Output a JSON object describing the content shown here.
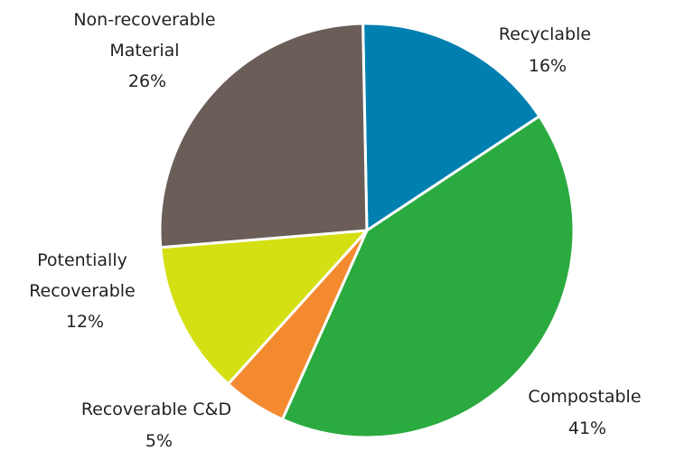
{
  "chart_data": {
    "type": "pie",
    "title": "",
    "slices": [
      {
        "label_lines": [
          "Recyclable"
        ],
        "percent_text": "16%",
        "value": 16,
        "color": "#0080b0"
      },
      {
        "label_lines": [
          "Compostable"
        ],
        "percent_text": "41%",
        "value": 41,
        "color": "#2aaa3f"
      },
      {
        "label_lines": [
          "Recoverable C&D"
        ],
        "percent_text": "5%",
        "value": 5,
        "color": "#f48a30"
      },
      {
        "label_lines": [
          "Potentially",
          "Recoverable"
        ],
        "percent_text": "12%",
        "value": 12,
        "color": "#d4e014"
      },
      {
        "label_lines": [
          "Non-recoverable",
          "Material"
        ],
        "percent_text": "26%",
        "value": 26,
        "color": "#6b5d58"
      }
    ]
  }
}
